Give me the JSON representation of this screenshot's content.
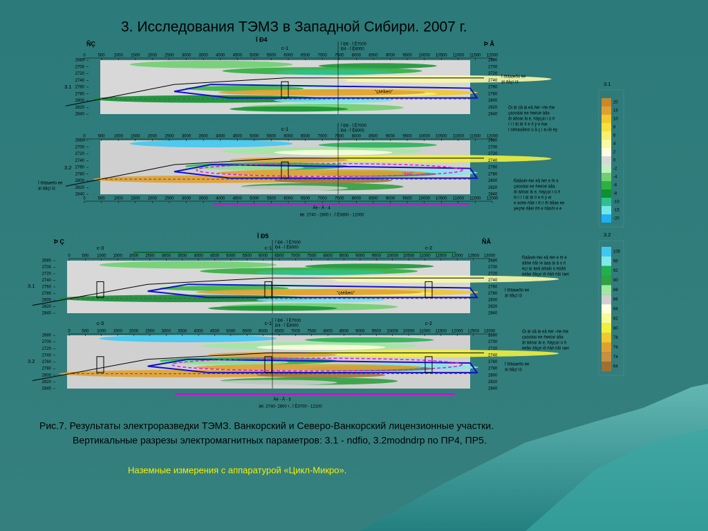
{
  "title": "3. Исследования ТЭМЗ в Западной Сибири. 2007 г.",
  "profiles": [
    {
      "label": "Ï Ð4",
      "left": "ÑÇ",
      "right": "Þ Â",
      "xticks": [
        0,
        500,
        1000,
        1500,
        2000,
        2500,
        3000,
        3500,
        4000,
        4500,
        5000,
        5500,
        6000,
        6500,
        7000,
        7500,
        8000,
        8500,
        9000,
        9500,
        10000,
        10500,
        11000,
        11500,
        12000
      ],
      "depths": [
        2680,
        2700,
        2720,
        2740,
        2760,
        2780,
        2800,
        2820,
        2840
      ],
      "sections": [
        {
          "param": "3.1",
          "wells": [
            "c-1"
          ],
          "crossing": [
            "Ï Ð6 - Ï Ê7000",
            "Ð4 - Ï Ê8000"
          ],
          "annotation": "\"çàëåæü\""
        },
        {
          "param": "3.2",
          "wells": [
            "c-1"
          ],
          "crossing": [
            "Ï Ð6 - Ï Ê7000",
            "Ð4 - Ï Ê8000"
          ],
          "annotation": "\"ãàëî\""
        }
      ],
      "footer": [
        "Ãë - Â - 4",
        "äë. 2740 - 2800 ì , Ï Ê3800 - 12000"
      ]
    },
    {
      "label": "Ï Ð5",
      "left": "Þ Ç",
      "right": "ÑÂ",
      "xticks": [
        0,
        500,
        1000,
        1500,
        2000,
        2500,
        3000,
        3500,
        4000,
        4500,
        5000,
        5500,
        6000,
        6500,
        7000,
        7500,
        8000,
        8500,
        9000,
        9500,
        10000,
        10500,
        11000,
        11500,
        12000,
        12500,
        13000
      ],
      "depths": [
        2680,
        2700,
        2720,
        2740,
        2760,
        2780,
        2800,
        2820,
        2840
      ],
      "sections": [
        {
          "param": "3.1",
          "wells": [
            "c-3",
            "c-1",
            "c-2"
          ],
          "crossing": [
            "Ï Ð6 - Ï Ê7000",
            "Ð4 - Ï Ê8000"
          ],
          "annotation": "\"çàëåæü\""
        },
        {
          "param": "3.2",
          "wells": [
            "c-3",
            "c-1",
            "c-2"
          ],
          "crossing": [
            "Ï Ð6 - Ï Ê7000",
            "Ð4 - Ï Ê8000"
          ],
          "annotation": null
        }
      ],
      "footer": [
        "Ãë - Â - 5",
        "äë. 2740- 2800 ì , Ï Ê3700 - 12100"
      ]
    }
  ],
  "scales": [
    {
      "label": "3.1",
      "values": [
        20,
        15,
        10,
        8,
        6,
        4,
        2,
        0,
        -2,
        -4,
        -6,
        -8,
        -10,
        -15,
        -20
      ],
      "colors": [
        "#c8882c",
        "#e0a030",
        "#f0c830",
        "#f8e040",
        "#f8f070",
        "#fafaa8",
        "#ffffe0",
        "#d8d8d8",
        "#c0f0c0",
        "#70d070",
        "#30b040",
        "#109030",
        "#30c090",
        "#70e8e8",
        "#20b0f0"
      ]
    },
    {
      "label": "3.2",
      "values": [
        105,
        95,
        92,
        90,
        88,
        86,
        84,
        82,
        80,
        78,
        76,
        74,
        64
      ],
      "colors": [
        "#40c8f0",
        "#80e8e8",
        "#20b050",
        "#30a040",
        "#a0e8a0",
        "#d0d0d0",
        "#ffffe0",
        "#fafa98",
        "#f0f040",
        "#f0c830",
        "#e0a030",
        "#c89040",
        "#a07030"
      ]
    }
  ],
  "notes": [
    {
      "lines": [
        "Ï ðîâàæðû èé",
        "äî ðåçî ì3"
      ]
    },
    {
      "lines": [
        "Öi ãî ûå ãi èå ñëî ÷ñè ñîé",
        "çàòòâàí èé ñèëüé âåà",
        "ãî ãðòàí ãi é, ñâÿçàí í û ñ",
        "ï í î ãî ãî ïî è ñ ÿ è ñæ",
        "î òðöàòåëüí û å ç í à÷åí èÿ"
      ]
    },
    {
      "lines": [
        "Ï ðîâàæðû èé",
        "äî ðåçî ì3"
      ]
    },
    {
      "lines": [
        "Ñâåòëî-ñèí èå ñëî è ñî é",
        "çàòòâàí èé ñèëüé âåà",
        "ãî ãðòàí ãi é, ñâÿçàí í û ñ",
        "ñí ï ì î ãî ãî ïî è ñ ÿ èí ",
        "è äóñé ñåë í ñì î ðî ðåàé èé",
        "ýéçñé ðåèï ññ è ñåòñî é è"
      ]
    },
    {
      "lines": [
        "Ñâåòëî-ñèí èå ñëî è ñî é",
        "âåñé ñåì íé âàà ãi ã ó ñ",
        "ëçí äí ãèå ãðàåí û ñôåð",
        "ëëåé ðåçé ïð ñåð ñåì ìàéí"
      ]
    },
    {
      "lines": [
        "Ï ðîâàæðû èé",
        "äî ðåçî ì3"
      ]
    },
    {
      "lines": [
        "Öi ãî ûå ãi èå ñëî ÷ñè ñîé",
        "çàòòâàí èé ñèëüé âåà",
        "ãî ãðòàí ãi é, ñâÿçàí û ñ",
        "ëëåé ðåçé ïð ñåð ñåì ìàéí"
      ]
    },
    {
      "lines": [
        "Ï ðîâàæðû èé",
        "äî ðåçî ì3"
      ]
    }
  ],
  "caption": [
    "Рис.7.  Результаты электроразведки ТЭМЗ. Ванкорский и Северо-Ванкорский лицензионные участки.",
    "Вертикальные разрезы электромагнитных параметров: 3.1 - ndfio, 3.2modndrp  по ПР4, ПР5."
  ],
  "footnote": "Наземные измерения с аппаратурой «Цикл-Микро»."
}
